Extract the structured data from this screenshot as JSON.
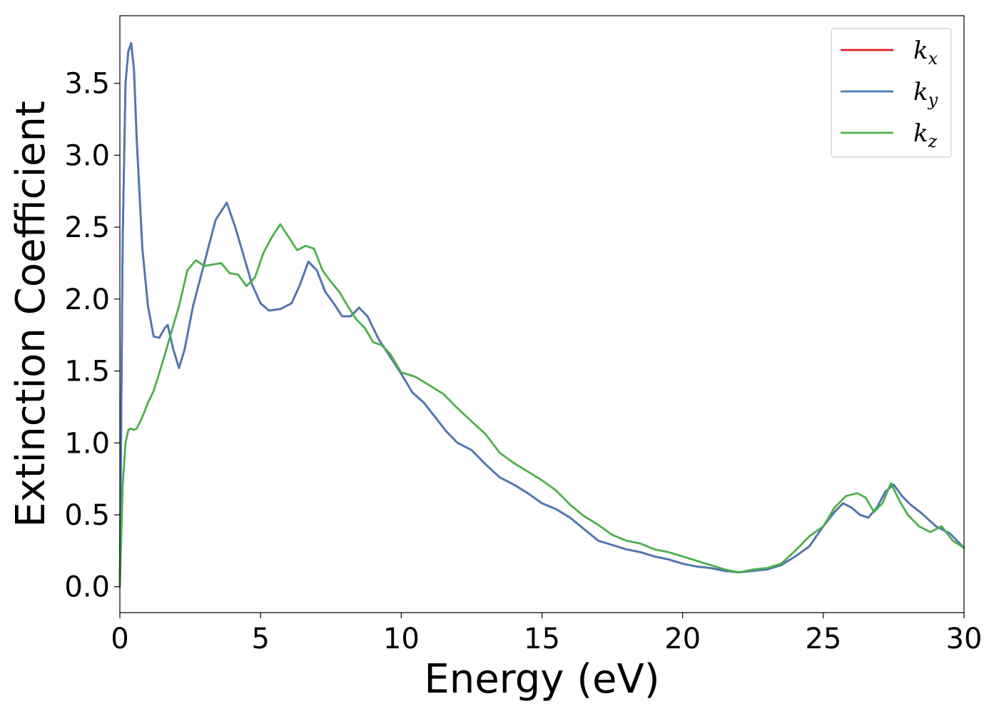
{
  "chart_data": {
    "type": "line",
    "xlabel": "Energy (eV)",
    "ylabel": "Extinction Coefficient",
    "xlim": [
      0,
      30
    ],
    "ylim": [
      -0.18,
      3.97
    ],
    "xticks": [
      0,
      5,
      10,
      15,
      20,
      25,
      30
    ],
    "yticks": [
      0.0,
      0.5,
      1.0,
      1.5,
      2.0,
      2.5,
      3.0,
      3.5
    ],
    "xtick_labels": [
      "0",
      "5",
      "10",
      "15",
      "20",
      "25",
      "30"
    ],
    "ytick_labels": [
      "0.0",
      "0.5",
      "1.0",
      "1.5",
      "2.0",
      "2.5",
      "3.0",
      "3.5"
    ],
    "grid": false,
    "legend_position": "top-right",
    "series": [
      {
        "name": "k_x",
        "label_base": "k",
        "label_sub": "x",
        "color": "#e41a1c",
        "x": [
          0,
          0.1,
          0.2,
          0.3,
          0.4,
          0.5,
          0.6,
          0.8,
          1.0,
          1.2,
          1.4,
          1.6,
          1.7,
          1.9,
          2.1,
          2.3,
          2.6,
          3.0,
          3.4,
          3.8,
          4.1,
          4.4,
          4.7,
          5.0,
          5.3,
          5.7,
          6.1,
          6.4,
          6.7,
          7.0,
          7.3,
          7.6,
          7.9,
          8.2,
          8.5,
          8.8,
          9.2,
          9.6,
          10.0,
          10.4,
          10.8,
          11.2,
          11.6,
          12.0,
          12.5,
          13.0,
          13.5,
          14.0,
          14.5,
          15.0,
          15.5,
          16.0,
          16.5,
          17.0,
          17.5,
          18.0,
          18.5,
          19.0,
          19.5,
          20.0,
          20.5,
          21.0,
          21.5,
          22.0,
          22.5,
          23.0,
          23.5,
          24.0,
          24.5,
          25.0,
          25.4,
          25.7,
          26.0,
          26.3,
          26.6,
          26.9,
          27.2,
          27.5,
          27.8,
          28.1,
          28.5,
          29.0,
          29.5,
          30.0
        ],
        "values": [
          0.0,
          2.4,
          3.5,
          3.72,
          3.78,
          3.6,
          3.1,
          2.35,
          1.95,
          1.74,
          1.73,
          1.8,
          1.82,
          1.65,
          1.52,
          1.65,
          1.95,
          2.25,
          2.55,
          2.67,
          2.5,
          2.3,
          2.1,
          1.97,
          1.92,
          1.93,
          1.97,
          2.1,
          2.26,
          2.2,
          2.05,
          1.97,
          1.88,
          1.88,
          1.94,
          1.88,
          1.72,
          1.6,
          1.48,
          1.35,
          1.28,
          1.18,
          1.08,
          1.0,
          0.95,
          0.85,
          0.76,
          0.71,
          0.65,
          0.58,
          0.54,
          0.48,
          0.4,
          0.32,
          0.29,
          0.26,
          0.24,
          0.21,
          0.19,
          0.16,
          0.14,
          0.13,
          0.11,
          0.1,
          0.11,
          0.12,
          0.15,
          0.21,
          0.28,
          0.42,
          0.52,
          0.58,
          0.55,
          0.5,
          0.48,
          0.55,
          0.66,
          0.71,
          0.63,
          0.57,
          0.51,
          0.42,
          0.37,
          0.27
        ]
      },
      {
        "name": "k_y",
        "label_base": "k",
        "label_sub": "y",
        "color": "#4a7ab5",
        "x": [
          0,
          0.1,
          0.2,
          0.3,
          0.4,
          0.5,
          0.6,
          0.8,
          1.0,
          1.2,
          1.4,
          1.6,
          1.7,
          1.9,
          2.1,
          2.3,
          2.6,
          3.0,
          3.4,
          3.8,
          4.1,
          4.4,
          4.7,
          5.0,
          5.3,
          5.7,
          6.1,
          6.4,
          6.7,
          7.0,
          7.3,
          7.6,
          7.9,
          8.2,
          8.5,
          8.8,
          9.2,
          9.6,
          10.0,
          10.4,
          10.8,
          11.2,
          11.6,
          12.0,
          12.5,
          13.0,
          13.5,
          14.0,
          14.5,
          15.0,
          15.5,
          16.0,
          16.5,
          17.0,
          17.5,
          18.0,
          18.5,
          19.0,
          19.5,
          20.0,
          20.5,
          21.0,
          21.5,
          22.0,
          22.5,
          23.0,
          23.5,
          24.0,
          24.5,
          25.0,
          25.4,
          25.7,
          26.0,
          26.3,
          26.6,
          26.9,
          27.2,
          27.5,
          27.8,
          28.1,
          28.5,
          29.0,
          29.5,
          30.0
        ],
        "values": [
          0.0,
          2.4,
          3.5,
          3.72,
          3.78,
          3.6,
          3.1,
          2.35,
          1.95,
          1.74,
          1.73,
          1.8,
          1.82,
          1.65,
          1.52,
          1.65,
          1.95,
          2.25,
          2.55,
          2.67,
          2.5,
          2.3,
          2.1,
          1.97,
          1.92,
          1.93,
          1.97,
          2.1,
          2.26,
          2.2,
          2.05,
          1.97,
          1.88,
          1.88,
          1.94,
          1.88,
          1.72,
          1.6,
          1.48,
          1.35,
          1.28,
          1.18,
          1.08,
          1.0,
          0.95,
          0.85,
          0.76,
          0.71,
          0.65,
          0.58,
          0.54,
          0.48,
          0.4,
          0.32,
          0.29,
          0.26,
          0.24,
          0.21,
          0.19,
          0.16,
          0.14,
          0.13,
          0.11,
          0.1,
          0.11,
          0.12,
          0.15,
          0.21,
          0.28,
          0.42,
          0.52,
          0.58,
          0.55,
          0.5,
          0.48,
          0.55,
          0.66,
          0.71,
          0.63,
          0.57,
          0.51,
          0.42,
          0.37,
          0.27
        ]
      },
      {
        "name": "k_z",
        "label_base": "k",
        "label_sub": "z",
        "color": "#4daf4a",
        "x": [
          0,
          0.1,
          0.2,
          0.3,
          0.4,
          0.5,
          0.6,
          0.8,
          1.0,
          1.2,
          1.5,
          1.8,
          2.1,
          2.4,
          2.7,
          3.0,
          3.3,
          3.6,
          3.9,
          4.2,
          4.5,
          4.8,
          5.1,
          5.4,
          5.7,
          6.0,
          6.3,
          6.6,
          6.9,
          7.2,
          7.5,
          7.8,
          8.1,
          8.4,
          8.7,
          9.0,
          9.3,
          9.6,
          10.0,
          10.5,
          11.0,
          11.5,
          12.0,
          12.5,
          13.0,
          13.5,
          14.0,
          14.5,
          15.0,
          15.5,
          16.0,
          16.5,
          17.0,
          17.5,
          18.0,
          18.5,
          19.0,
          19.5,
          20.0,
          20.5,
          21.0,
          21.5,
          22.0,
          22.5,
          23.0,
          23.5,
          24.0,
          24.5,
          25.0,
          25.4,
          25.8,
          26.2,
          26.5,
          26.8,
          27.1,
          27.4,
          27.7,
          28.0,
          28.4,
          28.8,
          29.2,
          29.6,
          30.0
        ],
        "values": [
          0.0,
          0.7,
          1.0,
          1.09,
          1.1,
          1.09,
          1.1,
          1.18,
          1.28,
          1.36,
          1.55,
          1.75,
          1.95,
          2.2,
          2.27,
          2.23,
          2.24,
          2.25,
          2.18,
          2.17,
          2.09,
          2.15,
          2.32,
          2.43,
          2.52,
          2.43,
          2.34,
          2.37,
          2.35,
          2.2,
          2.12,
          2.05,
          1.95,
          1.86,
          1.8,
          1.7,
          1.68,
          1.62,
          1.49,
          1.46,
          1.4,
          1.34,
          1.24,
          1.15,
          1.06,
          0.93,
          0.86,
          0.8,
          0.74,
          0.67,
          0.57,
          0.49,
          0.43,
          0.36,
          0.32,
          0.3,
          0.26,
          0.24,
          0.21,
          0.18,
          0.15,
          0.12,
          0.1,
          0.12,
          0.13,
          0.16,
          0.25,
          0.35,
          0.42,
          0.55,
          0.63,
          0.65,
          0.62,
          0.52,
          0.58,
          0.72,
          0.6,
          0.5,
          0.42,
          0.38,
          0.42,
          0.32,
          0.27
        ]
      }
    ]
  }
}
